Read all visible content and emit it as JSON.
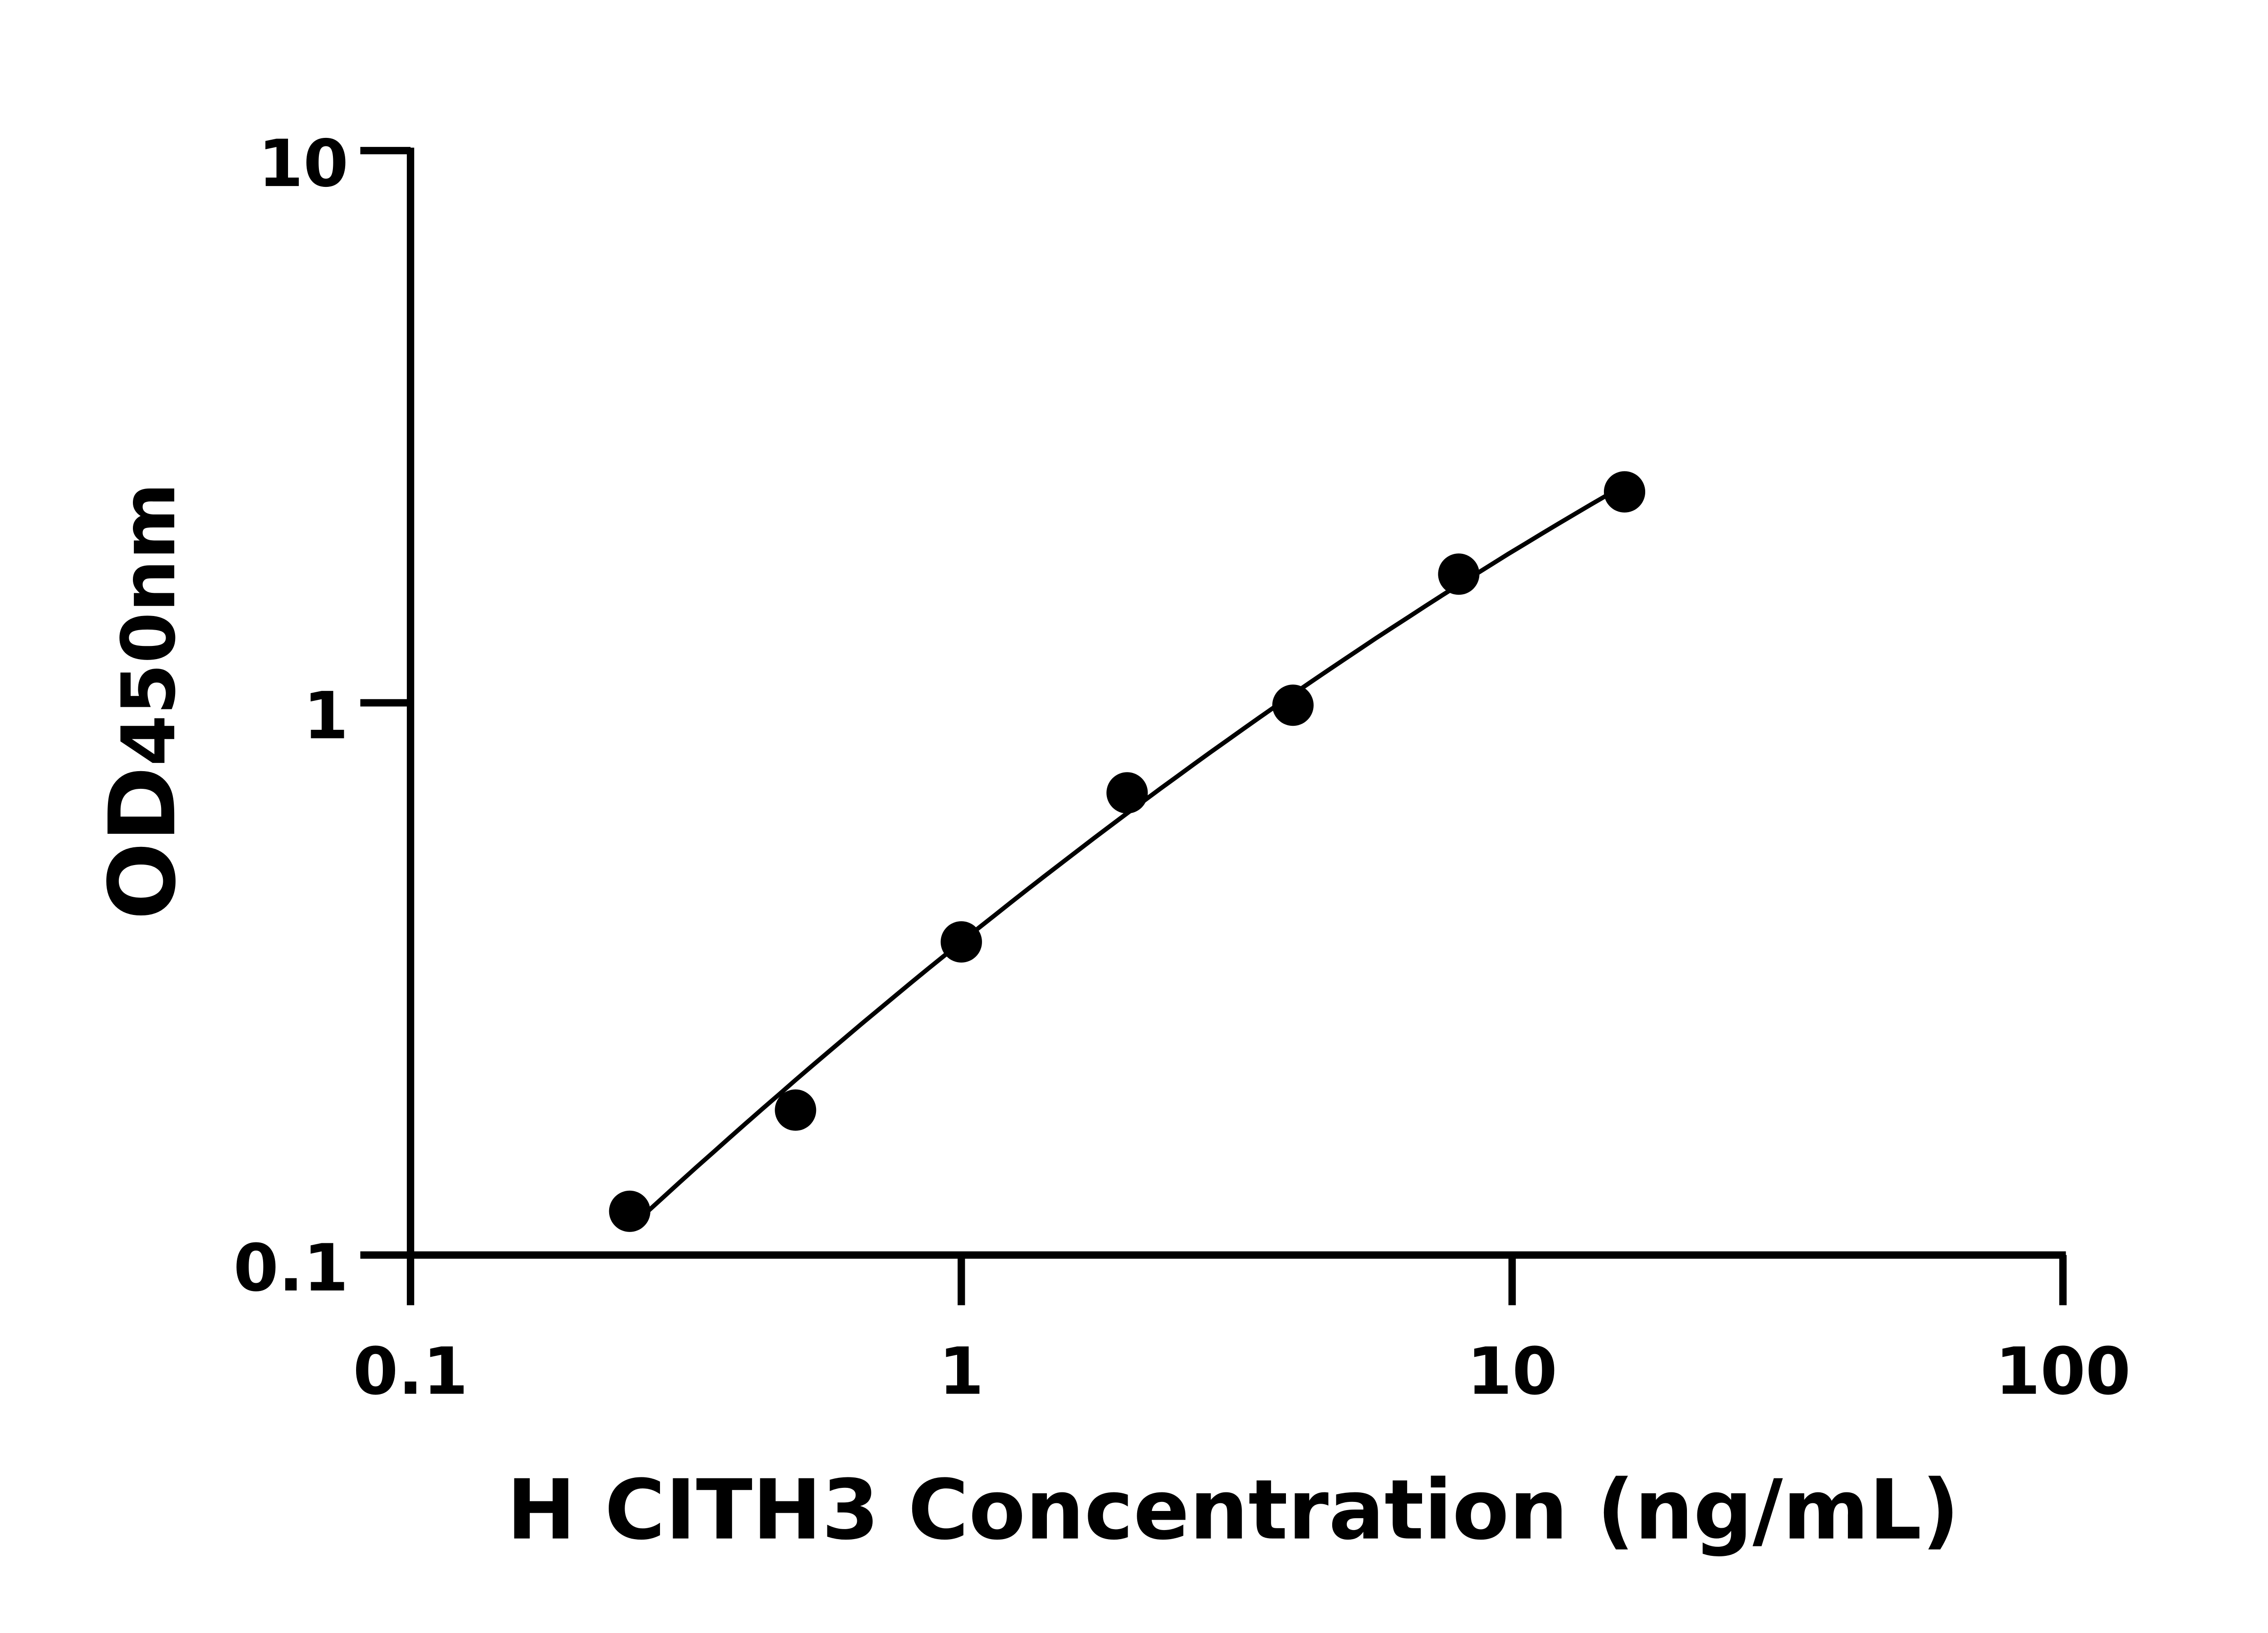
{
  "chart_data": {
    "type": "scatter",
    "title": "",
    "xlabel": "H CITH3 Concentration (ng/mL)",
    "ylabel_main": "OD",
    "ylabel_sub": "450nm",
    "x_scale": "log",
    "y_scale": "log",
    "xlim": [
      0.1,
      100
    ],
    "ylim": [
      0.1,
      10
    ],
    "x_ticks": [
      "0.1",
      "1",
      "10",
      "100"
    ],
    "y_ticks": [
      "0.1",
      "1",
      "10"
    ],
    "grid": false,
    "legend": "none",
    "colors": {
      "points": "#000000",
      "curve": "#000000",
      "axes": "#000000"
    },
    "series": [
      {
        "x": [
          0.25,
          0.5,
          1,
          2,
          4,
          8,
          16
        ],
        "y": [
          0.12,
          0.183,
          0.369,
          0.687,
          0.99,
          1.71,
          2.41
        ],
        "fit_line": true
      }
    ]
  }
}
